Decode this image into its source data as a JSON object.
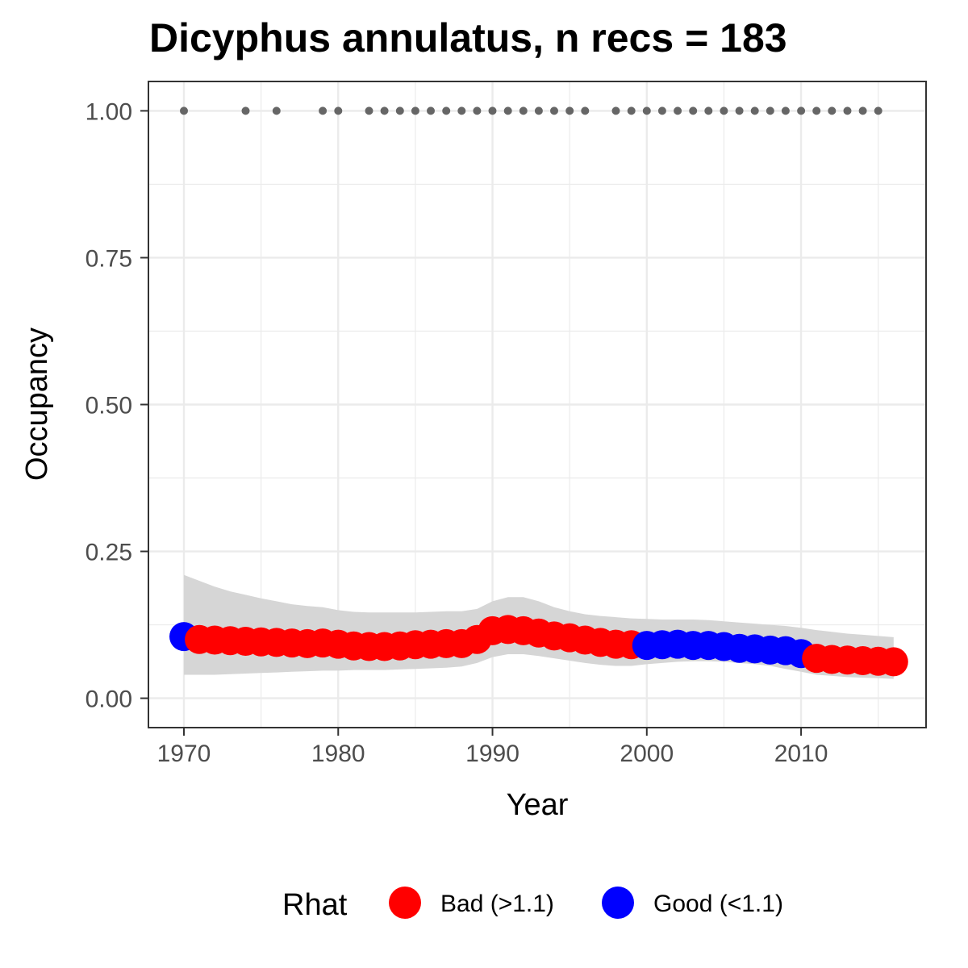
{
  "chart_data": {
    "type": "scatter",
    "title": "Dicyphus annulatus, n recs = 183",
    "xlabel": "Year",
    "ylabel": "Occupancy",
    "xlim": [
      1967.7,
      2018.1
    ],
    "ylim": [
      -0.05,
      1.05
    ],
    "x_ticks": [
      1970,
      1980,
      1990,
      2000,
      2010
    ],
    "x_tick_labels": [
      "1970",
      "1980",
      "1990",
      "2000",
      "2010"
    ],
    "y_ticks": [
      0,
      0.25,
      0.5,
      0.75,
      1.0
    ],
    "y_tick_labels": [
      "0.00",
      "0.25",
      "0.50",
      "0.75",
      "1.00"
    ],
    "grid": true,
    "legend": {
      "title": "Rhat",
      "position": "bottom",
      "entries": [
        {
          "label": "Bad (>1.1)",
          "color": "#ff0000"
        },
        {
          "label": "Good (<1.1)",
          "color": "#0000ff"
        }
      ]
    },
    "records": {
      "color": "#666666",
      "y": 1.0,
      "years": [
        1970,
        1974,
        1976,
        1979,
        1980,
        1982,
        1983,
        1984,
        1985,
        1986,
        1987,
        1988,
        1989,
        1990,
        1991,
        1992,
        1993,
        1994,
        1995,
        1996,
        1998,
        1999,
        2000,
        2001,
        2002,
        2003,
        2004,
        2005,
        2006,
        2007,
        2008,
        2009,
        2010,
        2011,
        2012,
        2013,
        2014,
        2015
      ]
    },
    "ribbon": {
      "color": "#d6d6d6",
      "x": [
        1970,
        1971,
        1972,
        1973,
        1974,
        1975,
        1976,
        1977,
        1978,
        1979,
        1980,
        1981,
        1982,
        1983,
        1984,
        1985,
        1986,
        1987,
        1988,
        1989,
        1990,
        1991,
        1992,
        1993,
        1994,
        1995,
        1996,
        1997,
        1998,
        1999,
        2000,
        2001,
        2002,
        2003,
        2004,
        2005,
        2006,
        2007,
        2008,
        2009,
        2010,
        2011,
        2012,
        2013,
        2014,
        2015,
        2016
      ],
      "lower": [
        0.04,
        0.04,
        0.04,
        0.041,
        0.042,
        0.043,
        0.044,
        0.045,
        0.046,
        0.047,
        0.047,
        0.048,
        0.048,
        0.048,
        0.049,
        0.05,
        0.051,
        0.052,
        0.054,
        0.06,
        0.07,
        0.075,
        0.075,
        0.072,
        0.068,
        0.064,
        0.06,
        0.057,
        0.055,
        0.055,
        0.058,
        0.06,
        0.062,
        0.063,
        0.063,
        0.062,
        0.06,
        0.058,
        0.055,
        0.05,
        0.045,
        0.04,
        0.038,
        0.036,
        0.035,
        0.034,
        0.033
      ],
      "upper": [
        0.21,
        0.2,
        0.19,
        0.182,
        0.176,
        0.17,
        0.165,
        0.16,
        0.157,
        0.155,
        0.15,
        0.147,
        0.146,
        0.146,
        0.146,
        0.146,
        0.147,
        0.148,
        0.148,
        0.152,
        0.165,
        0.172,
        0.172,
        0.165,
        0.155,
        0.148,
        0.143,
        0.14,
        0.138,
        0.136,
        0.135,
        0.134,
        0.134,
        0.134,
        0.133,
        0.131,
        0.129,
        0.127,
        0.125,
        0.123,
        0.12,
        0.116,
        0.113,
        0.11,
        0.108,
        0.106,
        0.104
      ]
    },
    "series": [
      {
        "x": [
          1970,
          1971,
          1972,
          1973,
          1974,
          1975,
          1976,
          1977,
          1978,
          1979,
          1980,
          1981,
          1982,
          1983,
          1984,
          1985,
          1986,
          1987,
          1988,
          1989,
          1990,
          1991,
          1992,
          1993,
          1994,
          1995,
          1996,
          1997,
          1998,
          1999,
          2000,
          2001,
          2002,
          2003,
          2004,
          2005,
          2006,
          2007,
          2008,
          2009,
          2010,
          2011,
          2012,
          2013,
          2014,
          2015,
          2016
        ],
        "y": [
          0.105,
          0.1,
          0.099,
          0.098,
          0.097,
          0.096,
          0.095,
          0.094,
          0.093,
          0.094,
          0.092,
          0.089,
          0.088,
          0.088,
          0.089,
          0.091,
          0.092,
          0.093,
          0.093,
          0.1,
          0.115,
          0.117,
          0.115,
          0.111,
          0.106,
          0.103,
          0.099,
          0.095,
          0.092,
          0.091,
          0.09,
          0.091,
          0.092,
          0.09,
          0.09,
          0.088,
          0.085,
          0.084,
          0.082,
          0.081,
          0.076,
          0.068,
          0.066,
          0.065,
          0.064,
          0.063,
          0.062
        ],
        "rhat": [
          "Good (<1.1)",
          "Bad (>1.1)",
          "Bad (>1.1)",
          "Bad (>1.1)",
          "Bad (>1.1)",
          "Bad (>1.1)",
          "Bad (>1.1)",
          "Bad (>1.1)",
          "Bad (>1.1)",
          "Bad (>1.1)",
          "Bad (>1.1)",
          "Bad (>1.1)",
          "Bad (>1.1)",
          "Bad (>1.1)",
          "Bad (>1.1)",
          "Bad (>1.1)",
          "Bad (>1.1)",
          "Bad (>1.1)",
          "Bad (>1.1)",
          "Bad (>1.1)",
          "Bad (>1.1)",
          "Bad (>1.1)",
          "Bad (>1.1)",
          "Bad (>1.1)",
          "Bad (>1.1)",
          "Bad (>1.1)",
          "Bad (>1.1)",
          "Bad (>1.1)",
          "Bad (>1.1)",
          "Bad (>1.1)",
          "Good (<1.1)",
          "Good (<1.1)",
          "Good (<1.1)",
          "Good (<1.1)",
          "Good (<1.1)",
          "Good (<1.1)",
          "Good (<1.1)",
          "Good (<1.1)",
          "Good (<1.1)",
          "Good (<1.1)",
          "Good (<1.1)",
          "Bad (>1.1)",
          "Bad (>1.1)",
          "Bad (>1.1)",
          "Bad (>1.1)",
          "Bad (>1.1)",
          "Bad (>1.1)"
        ]
      }
    ]
  }
}
